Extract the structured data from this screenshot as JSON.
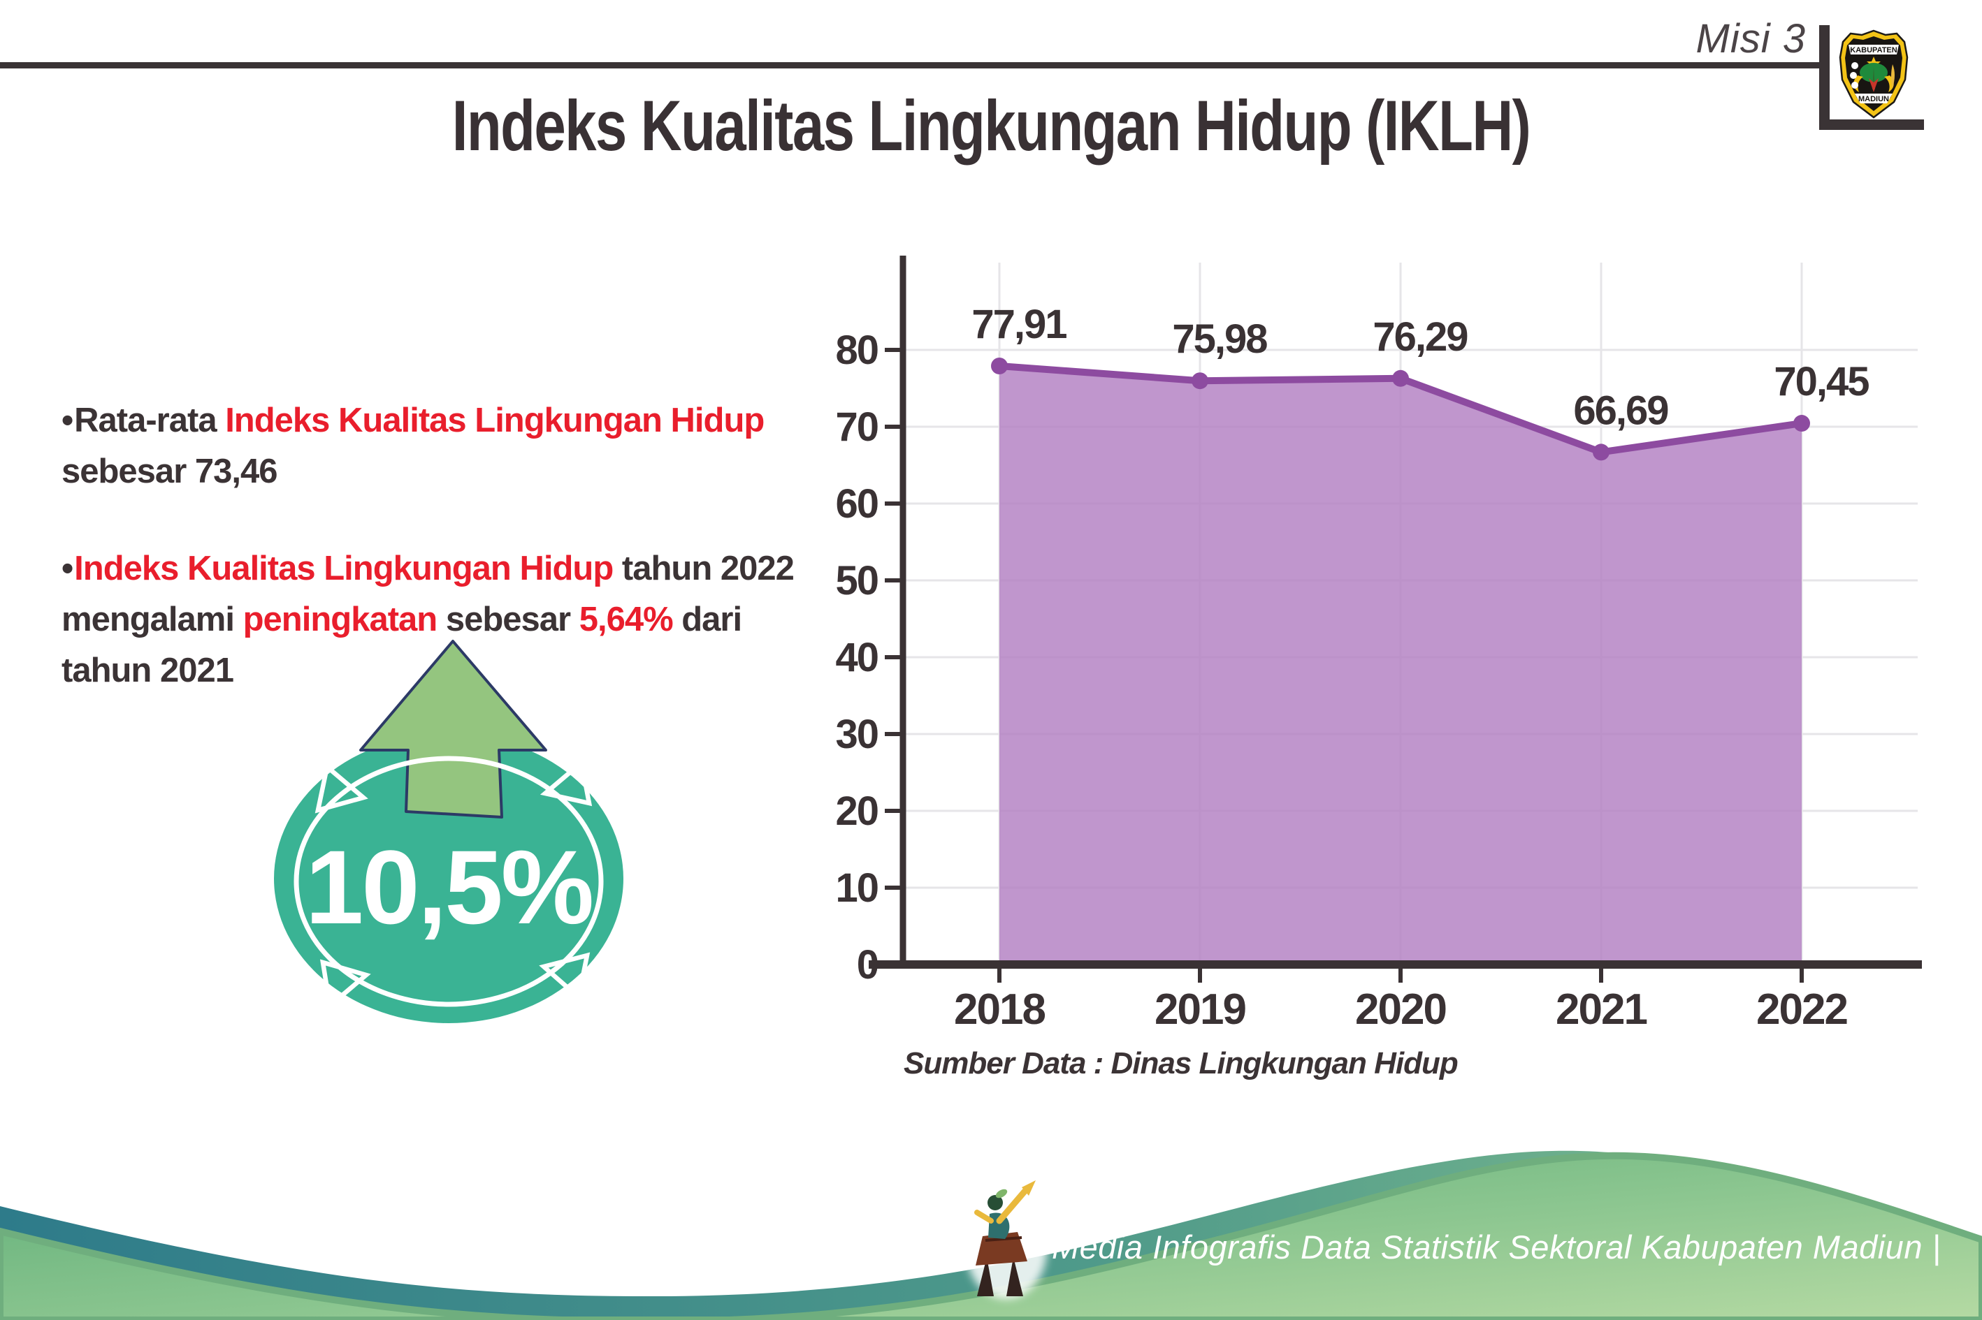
{
  "header": {
    "misi_label": "Misi 3",
    "title": "Indeks Kualitas Lingkungan Hidup (IKLH)"
  },
  "logo": {
    "top_text": "KABUPATEN",
    "bottom_text": "MADIUN"
  },
  "bullets": [
    {
      "segments": [
        {
          "text": "Rata-rata ",
          "color": "dark"
        },
        {
          "text": "Indeks Kualitas Lingkungan Hidup",
          "color": "red"
        },
        {
          "br": true
        },
        {
          "text": "sebesar 73,46",
          "color": "dark"
        }
      ]
    },
    {
      "segments": [
        {
          "text": "Indeks Kualitas Lingkungan Hidup",
          "color": "red"
        },
        {
          "text": " tahun 2022",
          "color": "dark"
        },
        {
          "br": true
        },
        {
          "text": "mengalami ",
          "color": "dark"
        },
        {
          "text": "peningkatan",
          "color": "red"
        },
        {
          "text": " sebesar ",
          "color": "dark"
        },
        {
          "text": "5,64%",
          "color": "red"
        },
        {
          "text": " dari",
          "color": "dark"
        },
        {
          "br": true
        },
        {
          "text": "tahun 2021",
          "color": "dark"
        }
      ]
    }
  ],
  "badge": {
    "value": "10,5%"
  },
  "chart_data": {
    "type": "area",
    "categories": [
      "2018",
      "2019",
      "2020",
      "2021",
      "2022"
    ],
    "values": [
      77.91,
      75.98,
      76.29,
      66.69,
      70.45
    ],
    "point_labels": [
      "77,91",
      "75,98",
      "76,29",
      "66,69",
      "70,45"
    ],
    "title": "",
    "xlabel": "",
    "ylabel": "",
    "ylim": [
      0,
      80
    ],
    "ytick_step": 10,
    "grid": true,
    "legend_position": "none"
  },
  "source_text": "Sumber Data : Dinas Lingkungan Hidup",
  "footer": {
    "credit": "Media Infografis Data Statistik Sektoral Kabupaten Madiun |"
  },
  "colors": {
    "dark_text": "#3a3234",
    "red_text": "#e91e2c",
    "axis": "#3a3234",
    "grid": "#e6e5e8",
    "area_fill": "#b27fc2",
    "line": "#8d4ba0",
    "badge_teal": "#3ab394",
    "arrow_green": "#94c57f",
    "arrow_outline": "#2c3a66",
    "band_teal": "#2e7b8a",
    "band_green": "#84bf8e",
    "dome_green_dark": "#5fae78",
    "dome_green_light": "#b5daa3",
    "dome_rim": "#6fae7e"
  }
}
